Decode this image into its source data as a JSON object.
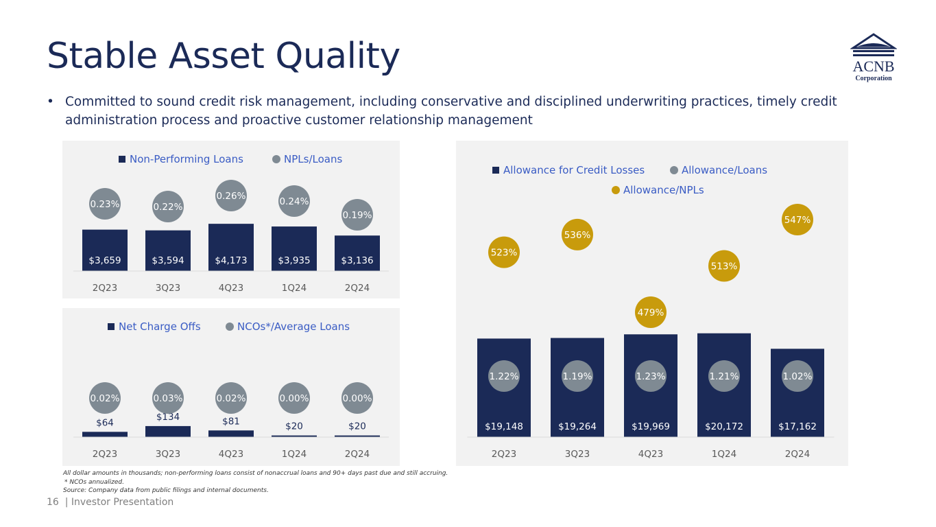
{
  "title": "Stable Asset Quality",
  "bullet": "Committed to sound credit risk management, including conservative and disciplined underwriting practices, timely credit administration process and proactive customer relationship management",
  "logo": {
    "name": "ACNB",
    "sub": "Corporation"
  },
  "colors": {
    "navy": "#1b2a57",
    "gray": "#7f8a93",
    "gold": "#c89b0c",
    "legend_text": "#3a5cc4",
    "axis_text": "#595959"
  },
  "chart_data": [
    {
      "type": "bar",
      "categories": [
        "2Q23",
        "3Q23",
        "4Q23",
        "1Q24",
        "2Q24"
      ],
      "series": [
        {
          "name": "Non-Performing Loans",
          "values": [
            3659,
            3594,
            4173,
            3935,
            3136
          ],
          "labels": [
            "$3,659",
            "$3,594",
            "$4,173",
            "$3,935",
            "$3,136"
          ]
        },
        {
          "name": "NPLs/Loans",
          "values": [
            0.23,
            0.22,
            0.26,
            0.24,
            0.19
          ],
          "labels": [
            "0.23%",
            "0.22%",
            "0.26%",
            "0.24%",
            "0.19%"
          ]
        }
      ]
    },
    {
      "type": "bar",
      "categories": [
        "2Q23",
        "3Q23",
        "4Q23",
        "1Q24",
        "2Q24"
      ],
      "series": [
        {
          "name": "Net Charge Offs",
          "values": [
            64,
            134,
            81,
            20,
            20
          ],
          "labels": [
            "$64",
            "$134",
            "$81",
            "$20",
            "$20"
          ]
        },
        {
          "name": "NCOs*/Average Loans",
          "values": [
            0.02,
            0.03,
            0.02,
            0.0,
            0.0
          ],
          "labels": [
            "0.02%",
            "0.03%",
            "0.02%",
            "0.00%",
            "0.00%"
          ]
        }
      ]
    },
    {
      "type": "bar",
      "categories": [
        "2Q23",
        "3Q23",
        "4Q23",
        "1Q24",
        "2Q24"
      ],
      "series": [
        {
          "name": "Allowance for Credit Losses",
          "values": [
            19148,
            19264,
            19969,
            20172,
            17162
          ],
          "labels": [
            "$19,148",
            "$19,264",
            "$19,969",
            "$20,172",
            "$17,162"
          ]
        },
        {
          "name": "Allowance/Loans",
          "values": [
            1.22,
            1.19,
            1.23,
            1.21,
            1.02
          ],
          "labels": [
            "1.22%",
            "1.19%",
            "1.23%",
            "1.21%",
            "1.02%"
          ]
        },
        {
          "name": "Allowance/NPLs",
          "values": [
            523,
            536,
            479,
            513,
            547
          ],
          "labels": [
            "523%",
            "536%",
            "479%",
            "513%",
            "547%"
          ]
        }
      ]
    }
  ],
  "footnotes": [
    "All dollar amounts in thousands; non-performing loans consist of nonaccrual loans and 90+ days past due and still accruing.",
    "* NCOs annualized.",
    "Source: Company data from public filings and internal documents."
  ],
  "footer": "16  | Investor Presentation"
}
